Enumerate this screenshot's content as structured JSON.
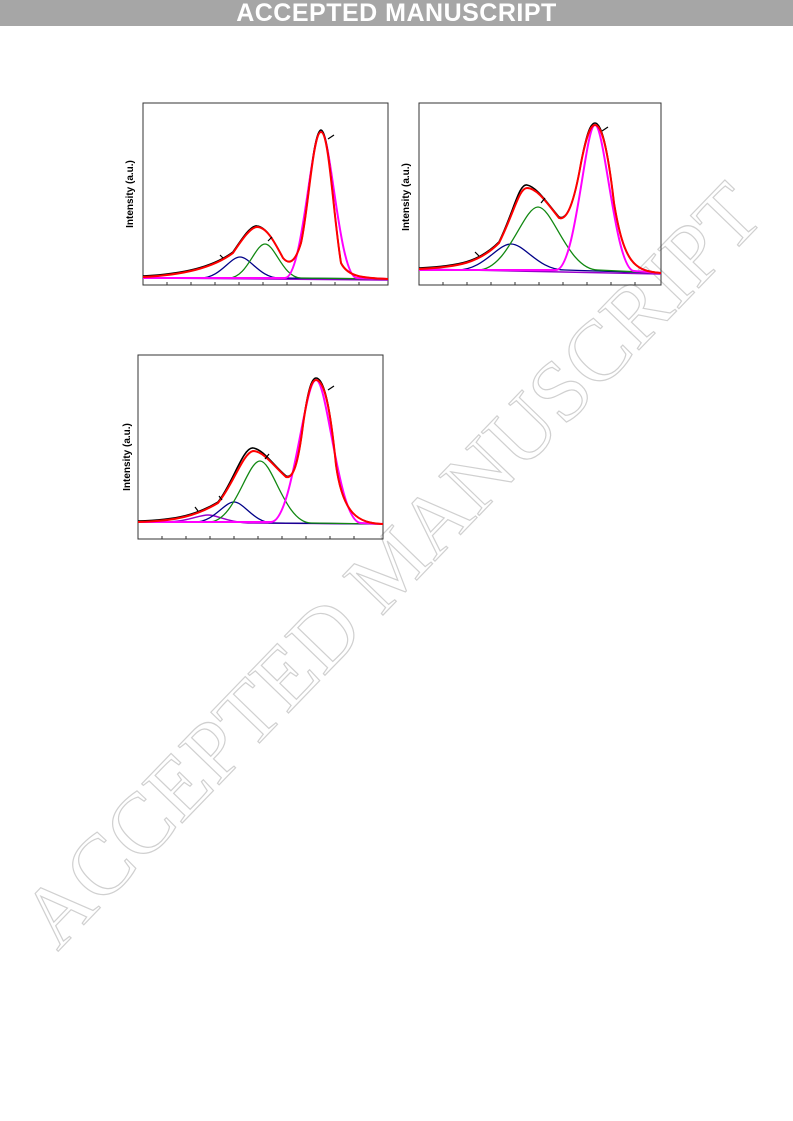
{
  "header": {
    "banner": "ACCEPTED MANUSCRIPT"
  },
  "watermark": "ACCEPTED MANUSCRIPT",
  "figures": [
    {
      "y_label": "Intensity (a.u.)"
    },
    {
      "y_label": "Intensity (a.u.)"
    },
    {
      "y_label": "Intensity (a.u.)"
    }
  ]
}
